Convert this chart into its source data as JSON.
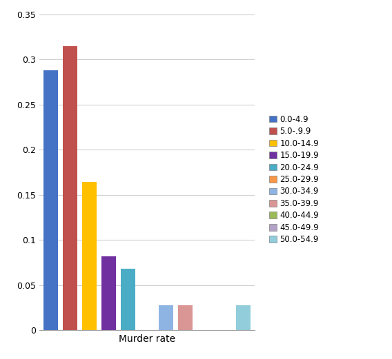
{
  "categories": [
    "0.0-4.9",
    "5.0-.9.9",
    "10.0-14.9",
    "15.0-19.9",
    "20.0-24.9",
    "25.0-29.9",
    "30.0-34.9",
    "35.0-39.9",
    "40.0-44.9",
    "45.0-49.9",
    "50.0-54.9"
  ],
  "legend_labels": [
    "0.0-4.9",
    "5.0-.9.9",
    "10.0-14.9",
    "15.0-19.9",
    "20.0-24.9",
    "25.0-29.9",
    "30.0-34.9",
    "35.0-39.9",
    "40.0-44.9",
    "45.0-49.9",
    "50.0-54.9"
  ],
  "values": [
    0.288,
    0.315,
    0.164,
    0.082,
    0.068,
    0.0,
    0.028,
    0.028,
    0.0,
    0.0,
    0.028
  ],
  "colors": [
    "#4472C4",
    "#C0504D",
    "#FFC000",
    "#7030A0",
    "#4BACC6",
    "#F79646",
    "#8EB4E3",
    "#D99694",
    "#9BBB59",
    "#B3A2C7",
    "#92CDDC"
  ],
  "xlabel": "Murder rate",
  "ylabel": "",
  "ylim": [
    0,
    0.35
  ],
  "yticks": [
    0,
    0.05,
    0.1,
    0.15,
    0.2,
    0.25,
    0.3,
    0.35
  ],
  "background_color": "#ffffff",
  "grid_color": "#D0D0D0",
  "tick_fontsize": 9,
  "label_fontsize": 10,
  "legend_fontsize": 8.5
}
